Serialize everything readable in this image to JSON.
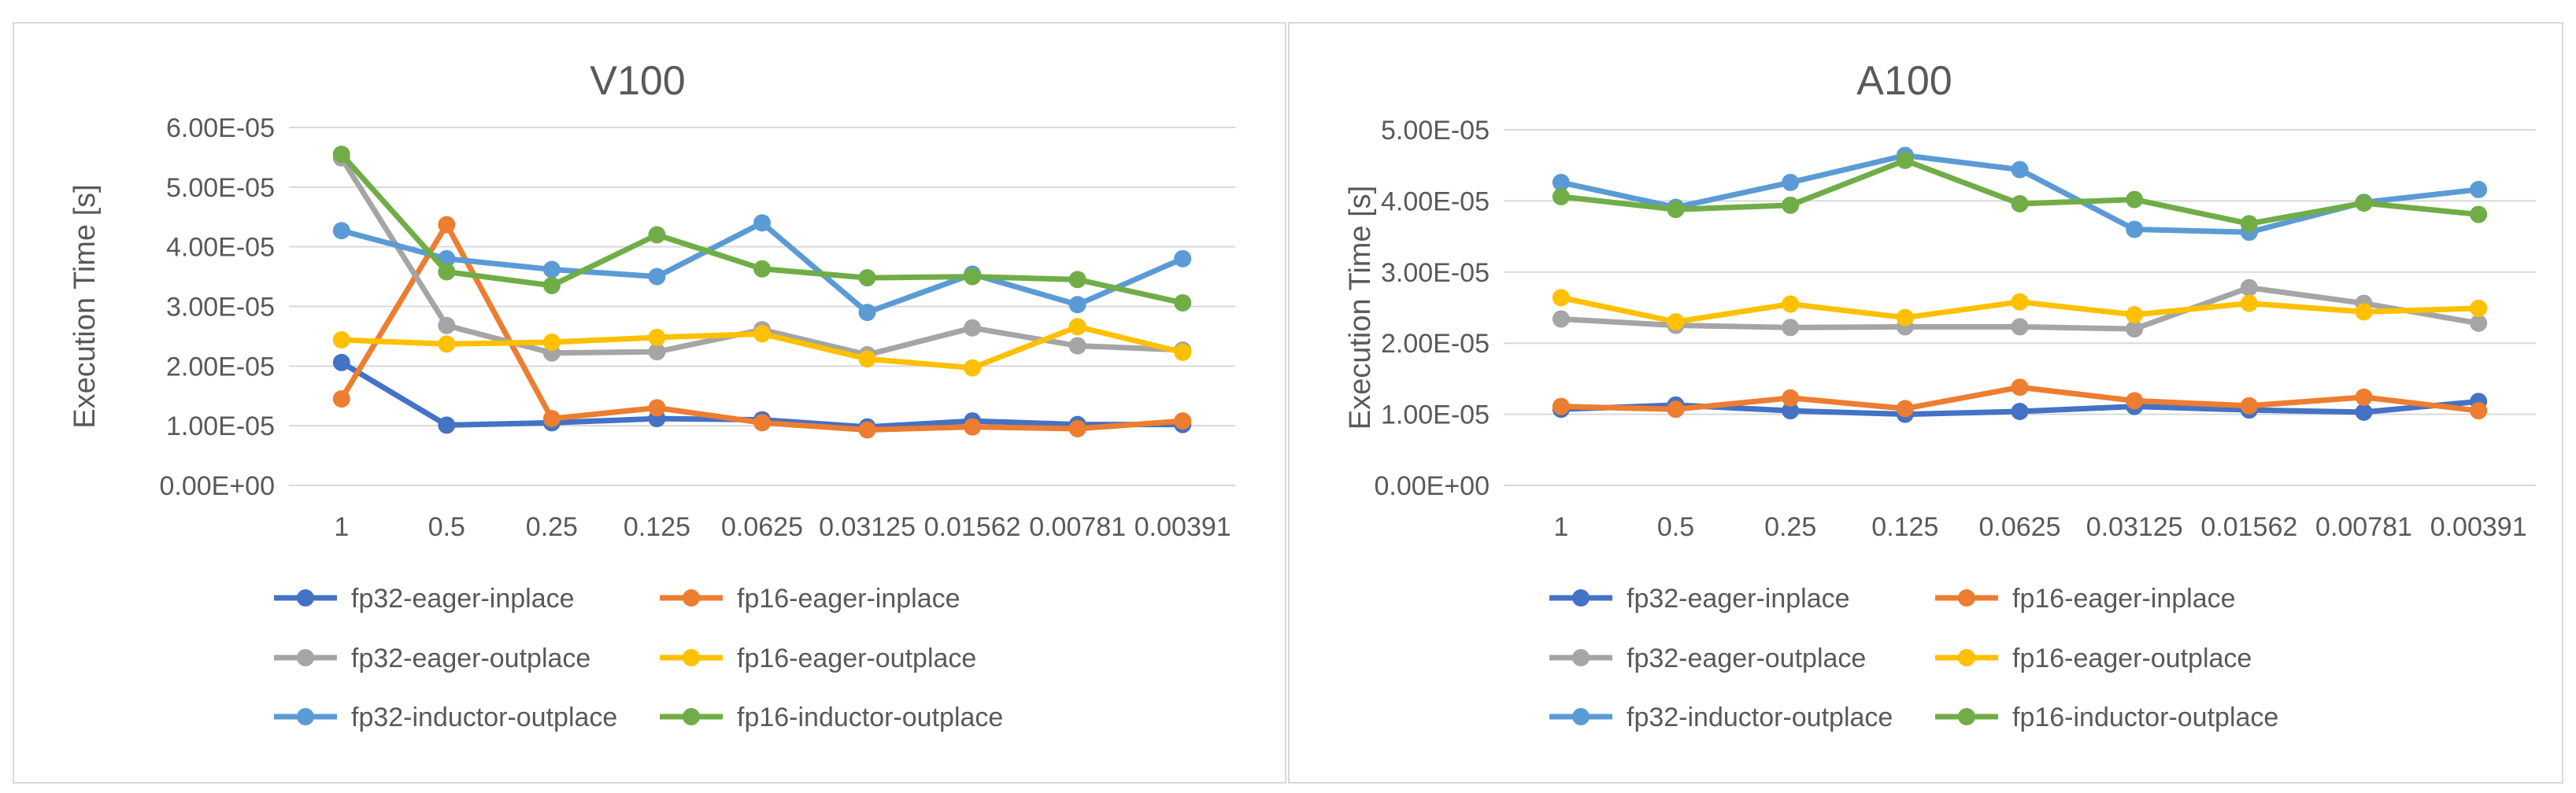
{
  "chart_data": [
    {
      "type": "line",
      "title": "V100",
      "xlabel": "",
      "ylabel": "Execution Time [s]",
      "categories": [
        "1",
        "0.5",
        "0.25",
        "0.125",
        "0.0625",
        "0.03125",
        "0.01562",
        "0.00781",
        "0.00391"
      ],
      "y_tick_labels": [
        "0.00E+00",
        "1.00E-05",
        "2.00E-05",
        "3.00E-05",
        "4.00E-05",
        "5.00E-05",
        "6.00E-05"
      ],
      "ylim": [
        0,
        6e-05
      ],
      "grid": true,
      "legend_position": "bottom",
      "series": [
        {
          "name": "fp32-eager-inplace",
          "color": "#4472C4",
          "values": [
            2.06e-05,
            1.01e-05,
            1.05e-05,
            1.12e-05,
            1.1e-05,
            9.8e-06,
            1.08e-05,
            1.02e-05,
            1.02e-05
          ]
        },
        {
          "name": "fp16-eager-inplace",
          "color": "#ED7D31",
          "values": [
            1.45e-05,
            4.37e-05,
            1.12e-05,
            1.3e-05,
            1.05e-05,
            9.3e-06,
            9.8e-06,
            9.5e-06,
            1.08e-05
          ]
        },
        {
          "name": "fp32-eager-outplace",
          "color": "#A5A5A5",
          "values": [
            5.49e-05,
            2.68e-05,
            2.22e-05,
            2.24e-05,
            2.61e-05,
            2.19e-05,
            2.64e-05,
            2.34e-05,
            2.27e-05
          ]
        },
        {
          "name": "fp16-eager-outplace",
          "color": "#FFC000",
          "values": [
            2.44e-05,
            2.37e-05,
            2.4e-05,
            2.48e-05,
            2.54e-05,
            2.12e-05,
            1.97e-05,
            2.66e-05,
            2.23e-05
          ]
        },
        {
          "name": "fp32-inductor-outplace",
          "color": "#5B9BD5",
          "values": [
            4.27e-05,
            3.8e-05,
            3.62e-05,
            3.5e-05,
            4.4e-05,
            2.9e-05,
            3.54e-05,
            3.03e-05,
            3.8e-05
          ]
        },
        {
          "name": "fp16-inductor-outplace",
          "color": "#70AD47",
          "values": [
            5.55e-05,
            3.58e-05,
            3.35e-05,
            4.2e-05,
            3.63e-05,
            3.48e-05,
            3.5e-05,
            3.45e-05,
            3.06e-05
          ]
        }
      ]
    },
    {
      "type": "line",
      "title": "A100",
      "xlabel": "",
      "ylabel": "Execution Time [s]",
      "categories": [
        "1",
        "0.5",
        "0.25",
        "0.125",
        "0.0625",
        "0.03125",
        "0.01562",
        "0.00781",
        "0.00391"
      ],
      "y_tick_labels": [
        "0.00E+00",
        "1.00E-05",
        "2.00E-05",
        "3.00E-05",
        "4.00E-05",
        "5.00E-05"
      ],
      "ylim": [
        0,
        5e-05
      ],
      "grid": true,
      "legend_position": "bottom",
      "series": [
        {
          "name": "fp32-eager-inplace",
          "color": "#4472C4",
          "values": [
            1.07e-05,
            1.13e-05,
            1.05e-05,
            1e-05,
            1.04e-05,
            1.11e-05,
            1.06e-05,
            1.03e-05,
            1.18e-05
          ]
        },
        {
          "name": "fp16-eager-inplace",
          "color": "#ED7D31",
          "values": [
            1.11e-05,
            1.07e-05,
            1.23e-05,
            1.08e-05,
            1.38e-05,
            1.19e-05,
            1.12e-05,
            1.24e-05,
            1.05e-05
          ]
        },
        {
          "name": "fp32-eager-outplace",
          "color": "#A5A5A5",
          "values": [
            2.34e-05,
            2.25e-05,
            2.22e-05,
            2.23e-05,
            2.23e-05,
            2.2e-05,
            2.78e-05,
            2.56e-05,
            2.28e-05
          ]
        },
        {
          "name": "fp16-eager-outplace",
          "color": "#FFC000",
          "values": [
            2.64e-05,
            2.3e-05,
            2.55e-05,
            2.36e-05,
            2.58e-05,
            2.4e-05,
            2.56e-05,
            2.44e-05,
            2.49e-05
          ]
        },
        {
          "name": "fp32-inductor-outplace",
          "color": "#5B9BD5",
          "values": [
            4.26e-05,
            3.91e-05,
            4.26e-05,
            4.64e-05,
            4.44e-05,
            3.6e-05,
            3.56e-05,
            3.98e-05,
            4.16e-05
          ]
        },
        {
          "name": "fp16-inductor-outplace",
          "color": "#70AD47",
          "values": [
            4.06e-05,
            3.88e-05,
            3.94e-05,
            4.57e-05,
            3.96e-05,
            4.02e-05,
            3.68e-05,
            3.97e-05,
            3.81e-05
          ]
        }
      ]
    }
  ]
}
